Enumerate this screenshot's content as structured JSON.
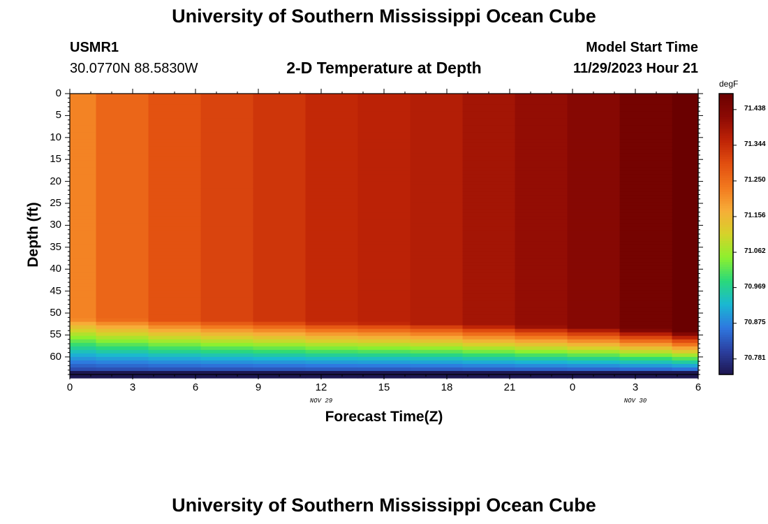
{
  "header": {
    "title": "University of Southern Mississippi Ocean Cube",
    "station_id": "USMR1",
    "coordinates": "30.0770N  88.5830W",
    "chart_title": "2-D Temperature at Depth",
    "model_start_label": "Model Start Time",
    "model_start_value": "11/29/2023 Hour 21"
  },
  "footer": {
    "title_repeat": "University of Southern Mississippi Ocean Cube"
  },
  "chart_data": {
    "type": "heatmap",
    "title": "2-D Temperature at Depth",
    "xlabel": "Forecast Time(Z)",
    "ylabel": "Depth (ft)",
    "x_tick_labels": [
      "0",
      "3",
      "6",
      "9",
      "12",
      "15",
      "18",
      "21",
      "0",
      "3",
      "6"
    ],
    "x_range_hours": [
      0,
      30
    ],
    "date_labels": [
      {
        "text": "NOV 29",
        "hour": 12
      },
      {
        "text": "NOV 30",
        "hour": 27
      }
    ],
    "y_tick_labels": [
      "0",
      "5",
      "10",
      "15",
      "20",
      "25",
      "30",
      "35",
      "40",
      "45",
      "50",
      "55",
      "60"
    ],
    "y_range_ft": [
      0,
      64
    ],
    "time_columns_hours": [
      0,
      2.5,
      5,
      7.5,
      10,
      12.5,
      15,
      17.5,
      20,
      22.5,
      25,
      27.5,
      30
    ],
    "upper_layer_temp_degF": [
      71.22,
      71.26,
      71.29,
      71.31,
      71.33,
      71.35,
      71.36,
      71.37,
      71.39,
      71.41,
      71.43,
      71.46,
      71.5
    ],
    "thermocline_start_ft": [
      51.5,
      51.5,
      51.7,
      51.9,
      52.0,
      52.2,
      52.3,
      52.5,
      52.8,
      53.1,
      53.4,
      53.8,
      54.2
    ],
    "bottom_temp_degF": 70.781,
    "bottom_depth_ft": 64,
    "colorbar": {
      "unit": "degF",
      "min": 70.74,
      "max": 71.48,
      "tick_labels": [
        "71.438",
        "71.344",
        "71.250",
        "71.156",
        "71.062",
        "70.969",
        "70.875",
        "70.781"
      ],
      "tick_values": [
        71.438,
        71.344,
        71.25,
        71.156,
        71.062,
        70.969,
        70.875,
        70.781
      ],
      "stops": [
        "#1d1650",
        "#2b3fa0",
        "#2e78e0",
        "#1ab8d2",
        "#2ad97a",
        "#8ef02e",
        "#d6d22a",
        "#f7ad38",
        "#f2781e",
        "#e24f10",
        "#be2306",
        "#8c0a04",
        "#6a0000"
      ]
    }
  }
}
